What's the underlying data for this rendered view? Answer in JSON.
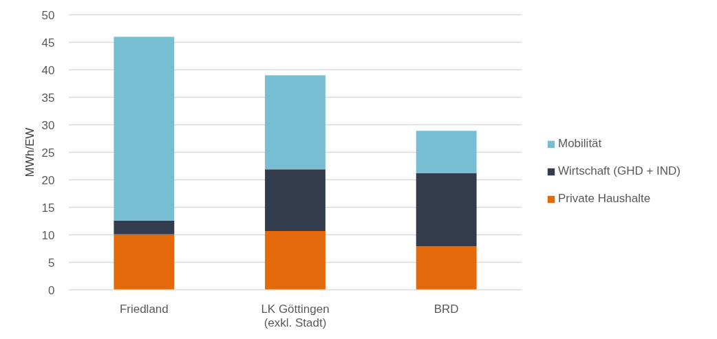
{
  "chart_data": {
    "type": "bar",
    "stacked": true,
    "categories": [
      "Friedland",
      "LK Göttingen\n(exkl. Stadt)",
      "BRD"
    ],
    "ylabel": "MWh/EW",
    "ylim": [
      0,
      50
    ],
    "yticks": [
      0,
      5,
      10,
      15,
      20,
      25,
      30,
      35,
      40,
      45,
      50
    ],
    "grid": "y",
    "legend": "right",
    "series": [
      {
        "name": "Private Haushalte",
        "color": "#e3690b",
        "values": [
          10.1,
          10.7,
          7.9
        ]
      },
      {
        "name": "Wirtschaft (GHD + IND)",
        "color": "#323c4c",
        "values": [
          2.5,
          11.2,
          13.3
        ]
      },
      {
        "name": "Mobilität",
        "color": "#77bed3",
        "values": [
          33.4,
          17.1,
          7.7
        ]
      }
    ]
  }
}
